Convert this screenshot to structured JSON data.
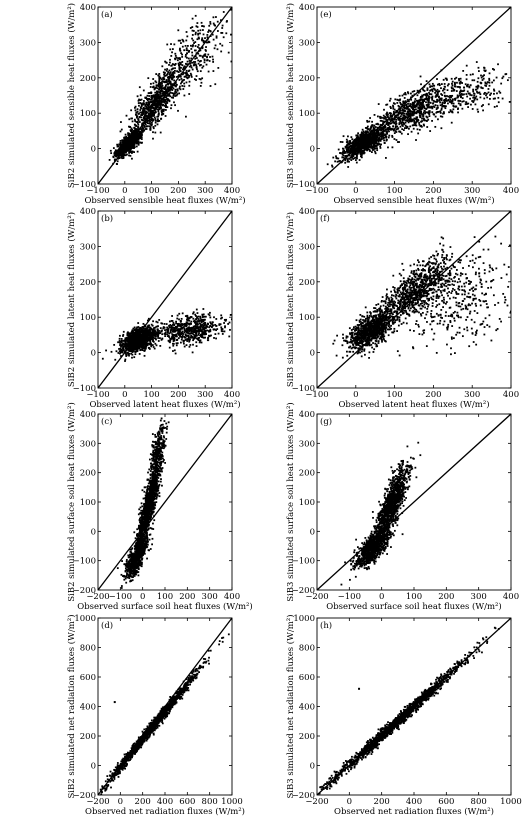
{
  "chart_data": [
    {
      "type": "scatter",
      "panel_label": "(a)",
      "xlabel": "Observed sensible heat fluxes (W/m²)",
      "ylabel": "SiB2 simulated sensible heat fluxes (W/m²)",
      "xlim": [
        -100,
        400
      ],
      "ylim": [
        -100,
        400
      ],
      "xticks": [
        -100,
        0,
        100,
        200,
        300,
        400
      ],
      "yticks": [
        -100,
        0,
        100,
        200,
        300,
        400
      ],
      "reference_line": "1:1",
      "cloud": [
        {
          "x": [
            -30,
            60
          ],
          "y": [
            -20,
            50
          ],
          "rho": 0.75,
          "n": 900
        },
        {
          "x": [
            20,
            220
          ],
          "y": [
            30,
            240
          ],
          "rho": 0.8,
          "n": 800
        },
        {
          "x": [
            150,
            370
          ],
          "y": [
            150,
            390
          ],
          "rho": 0.55,
          "n": 300
        }
      ]
    },
    {
      "type": "scatter",
      "panel_label": "(b)",
      "xlabel": "Observed latent heat fluxes (W/m²)",
      "ylabel": "SiB2 simulated latent heat fluxes (W/m²)",
      "xlim": [
        -100,
        400
      ],
      "ylim": [
        -100,
        400
      ],
      "xticks": [
        -100,
        0,
        100,
        200,
        300,
        400
      ],
      "yticks": [
        -100,
        0,
        100,
        200,
        300,
        400
      ],
      "reference_line": "1:1",
      "cloud": [
        {
          "x": [
            -10,
            110
          ],
          "y": [
            0,
            70
          ],
          "rho": 0.5,
          "n": 1200
        },
        {
          "x": [
            100,
            380
          ],
          "y": [
            20,
            110
          ],
          "rho": 0.3,
          "n": 600
        }
      ]
    },
    {
      "type": "scatter",
      "panel_label": "(c)",
      "xlabel": "Observed surface soil heat fluxes (W/m²)",
      "ylabel": "SiB2 simulated surface soil heat fluxes (W/m²)",
      "xlim": [
        -200,
        400
      ],
      "ylim": [
        -200,
        400
      ],
      "xticks": [
        -200,
        -100,
        0,
        100,
        200,
        300,
        400
      ],
      "yticks": [
        -200,
        -100,
        0,
        100,
        200,
        300,
        400
      ],
      "reference_line": "1:1",
      "cloud": [
        {
          "x": [
            -80,
            20
          ],
          "y": [
            -160,
            -20
          ],
          "rho": 0.7,
          "n": 700
        },
        {
          "x": [
            -20,
            70
          ],
          "y": [
            -40,
            200
          ],
          "rho": 0.8,
          "n": 1000
        },
        {
          "x": [
            30,
            100
          ],
          "y": [
            120,
            370
          ],
          "rho": 0.6,
          "n": 400
        }
      ]
    },
    {
      "type": "scatter",
      "panel_label": "(d)",
      "xlabel": "Observed net radiation fluxes (W/m²)",
      "ylabel": "SiB2 simulated net radiation fluxes (W/m²)",
      "xlim": [
        -200,
        1000
      ],
      "ylim": [
        -200,
        1000
      ],
      "xticks": [
        -200,
        0,
        200,
        400,
        600,
        800,
        1000
      ],
      "yticks": [
        -200,
        0,
        200,
        400,
        600,
        800,
        1000
      ],
      "reference_line": "1:1",
      "cloud": [
        {
          "x": [
            -120,
            700
          ],
          "y": [
            -125,
            650
          ],
          "rho": 0.995,
          "n": 1600
        }
      ],
      "outliers": [
        {
          "x": -50,
          "y": 430
        }
      ]
    },
    {
      "type": "scatter",
      "panel_label": "(e)",
      "xlabel": "Observed sensible heat fluxes (W/m²)",
      "ylabel": "SiB3 simulated sensible heat fluxes (W/m²)",
      "xlim": [
        -100,
        400
      ],
      "ylim": [
        -100,
        400
      ],
      "xticks": [
        -100,
        0,
        100,
        200,
        300,
        400
      ],
      "yticks": [
        -100,
        0,
        100,
        200,
        300,
        400
      ],
      "reference_line": "1:1",
      "cloud": [
        {
          "x": [
            -40,
            80
          ],
          "y": [
            -30,
            60
          ],
          "rho": 0.7,
          "n": 900
        },
        {
          "x": [
            40,
            250
          ],
          "y": [
            30,
            180
          ],
          "rho": 0.7,
          "n": 800
        },
        {
          "x": [
            200,
            380
          ],
          "y": [
            90,
            220
          ],
          "rho": 0.4,
          "n": 250
        }
      ]
    },
    {
      "type": "scatter",
      "panel_label": "(f)",
      "xlabel": "Observed latent heat fluxes (W/m²)",
      "ylabel": "SiB3 simulated latent heat fluxes (W/m²)",
      "xlim": [
        -100,
        400
      ],
      "ylim": [
        -100,
        400
      ],
      "xticks": [
        -100,
        0,
        100,
        200,
        300,
        400
      ],
      "yticks": [
        -100,
        0,
        100,
        200,
        300,
        400
      ],
      "reference_line": "1:1",
      "cloud": [
        {
          "x": [
            -20,
            100
          ],
          "y": [
            10,
            120
          ],
          "rho": 0.6,
          "n": 900
        },
        {
          "x": [
            60,
            250
          ],
          "y": [
            80,
            270
          ],
          "rho": 0.7,
          "n": 800
        },
        {
          "x": [
            150,
            390
          ],
          "y": [
            10,
            290
          ],
          "rho": 0.3,
          "n": 350
        }
      ]
    },
    {
      "type": "scatter",
      "panel_label": "(g)",
      "xlabel": "Observed surface soil heat fluxes (W/m²)",
      "ylabel": "SiB3 simulated surface soil heat fluxes (W/m²)",
      "xlim": [
        -200,
        400
      ],
      "ylim": [
        -200,
        400
      ],
      "xticks": [
        -200,
        -100,
        0,
        100,
        200,
        300,
        400
      ],
      "yticks": [
        -200,
        -100,
        0,
        100,
        200,
        300,
        400
      ],
      "reference_line": "1:1",
      "cloud": [
        {
          "x": [
            -80,
            20
          ],
          "y": [
            -120,
            0
          ],
          "rho": 0.7,
          "n": 800
        },
        {
          "x": [
            -20,
            80
          ],
          "y": [
            -40,
            220
          ],
          "rho": 0.8,
          "n": 1100
        }
      ]
    },
    {
      "type": "scatter",
      "panel_label": "(h)",
      "xlabel": "Observed net radiation fluxes (W/m²)",
      "ylabel": "SiB3 simulated net radiation fluxes (W/m²)",
      "xlim": [
        -200,
        1000
      ],
      "ylim": [
        -200,
        1000
      ],
      "xticks": [
        -200,
        0,
        200,
        400,
        600,
        800,
        1000
      ],
      "yticks": [
        -200,
        0,
        200,
        400,
        600,
        800,
        1000
      ],
      "reference_line": "1:1",
      "cloud": [
        {
          "x": [
            -120,
            700
          ],
          "y": [
            -120,
            700
          ],
          "rho": 0.995,
          "n": 1600
        }
      ],
      "outliers": [
        {
          "x": 60,
          "y": 520
        }
      ]
    }
  ]
}
